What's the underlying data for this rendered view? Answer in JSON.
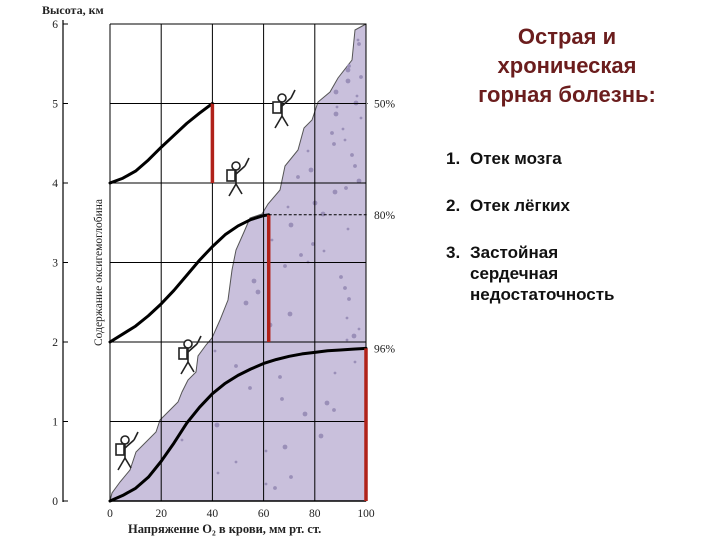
{
  "slide": {
    "title": "Острая и\nхроническая\nгорная болезнь:",
    "list": [
      {
        "num": "1.",
        "text": "Отек мозга"
      },
      {
        "num": "2.",
        "text": "Отек лёгких"
      },
      {
        "num": "3.",
        "text": "Застойная\nсердечная\nнедостаточность"
      }
    ]
  },
  "colors": {
    "title": "#6b1d1d",
    "red_bar": "#b0221a",
    "mountain": "#c9c0dc",
    "curve": "#000000"
  },
  "chart_data": {
    "type": "line",
    "title": "",
    "ylabel": "Высота, км",
    "xlabel": "Напряжение O₂ в крови, мм рт. ст.",
    "inner_ylabel": "Содержание оксигемоглобина",
    "x_ticks": [
      "0",
      "20",
      "40",
      "60",
      "80",
      "100"
    ],
    "y_ticks": [
      "0",
      "1",
      "2",
      "3",
      "4",
      "5",
      "6"
    ],
    "xlim": [
      0,
      100
    ],
    "ylim": [
      0,
      6
    ],
    "grid": true,
    "series": [
      {
        "baseline_km": 4,
        "end_x": 40,
        "end_km": 5.0,
        "label": "50%",
        "x": [
          0,
          5,
          10,
          15,
          20,
          25,
          30,
          35,
          40
        ],
        "y": [
          4.0,
          4.06,
          4.15,
          4.29,
          4.45,
          4.6,
          4.75,
          4.88,
          5.0
        ]
      },
      {
        "baseline_km": 2,
        "end_x": 62,
        "end_km": 3.6,
        "label": "80%",
        "x": [
          0,
          5,
          10,
          15,
          20,
          25,
          30,
          35,
          40,
          45,
          50,
          55,
          60,
          62
        ],
        "y": [
          2.0,
          2.1,
          2.2,
          2.33,
          2.48,
          2.65,
          2.84,
          3.03,
          3.2,
          3.35,
          3.46,
          3.54,
          3.59,
          3.6
        ]
      },
      {
        "baseline_km": 0,
        "end_x": 100,
        "end_km": 1.92,
        "label": "96%",
        "x": [
          0,
          5,
          10,
          15,
          20,
          25,
          30,
          35,
          40,
          45,
          50,
          55,
          60,
          65,
          70,
          75,
          80,
          85,
          90,
          95,
          100
        ],
        "y": [
          0.0,
          0.07,
          0.16,
          0.3,
          0.5,
          0.73,
          0.98,
          1.18,
          1.35,
          1.48,
          1.58,
          1.66,
          1.73,
          1.78,
          1.82,
          1.85,
          1.87,
          1.89,
          1.9,
          1.91,
          1.92
        ]
      }
    ]
  }
}
